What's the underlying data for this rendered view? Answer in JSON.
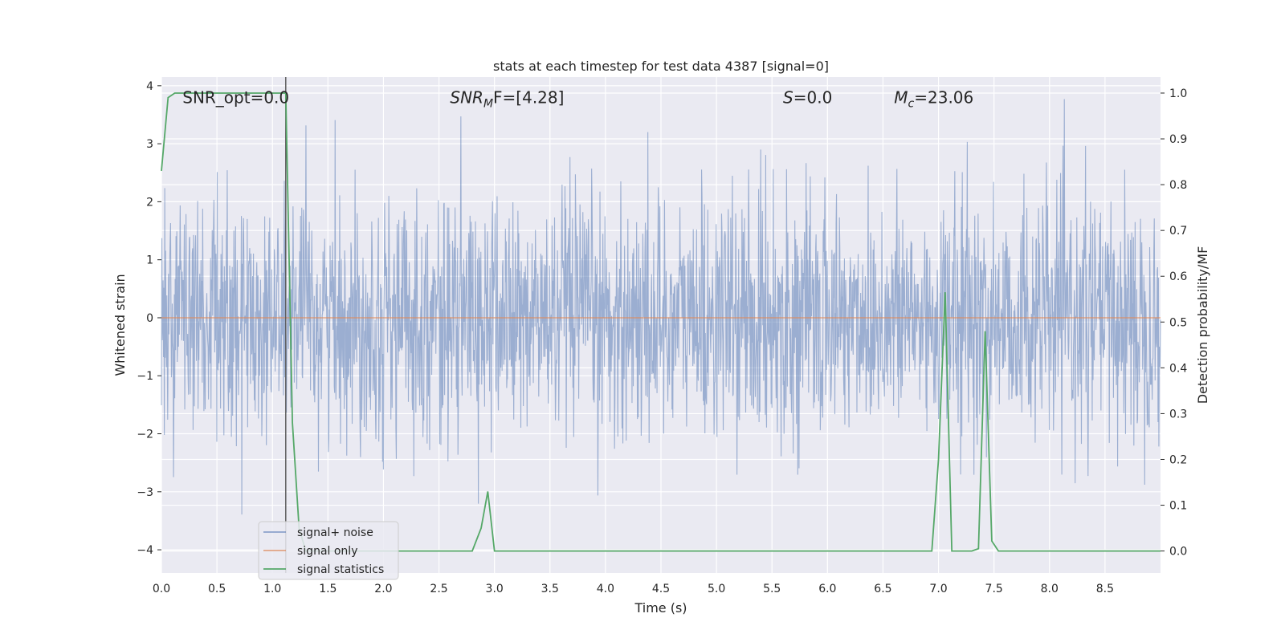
{
  "chart_data": {
    "type": "line",
    "title": "stats at each timestep for test data 4387 [signal=0]",
    "xlabel": "Time (s)",
    "ylabel": "Whitened strain",
    "y2label": "Detection probability/MF",
    "xlim": [
      0.0,
      9.0
    ],
    "ylim": [
      -4.4,
      4.15
    ],
    "y2lim": [
      -0.048,
      1.035
    ],
    "xticks": [
      "0.0",
      "0.5",
      "1.0",
      "1.5",
      "2.0",
      "2.5",
      "3.0",
      "3.5",
      "4.0",
      "4.5",
      "5.0",
      "5.5",
      "6.0",
      "6.5",
      "7.0",
      "7.5",
      "8.0",
      "8.5"
    ],
    "yticks": [
      "4",
      "3",
      "2",
      "1",
      "0",
      "−1",
      "−2",
      "−3",
      "−4"
    ],
    "y2ticks": [
      "1.0",
      "0.9",
      "0.8",
      "0.7",
      "0.6",
      "0.5",
      "0.4",
      "0.3",
      "0.2",
      "0.1",
      "0.0"
    ],
    "annotations": [
      {
        "label": "SNR_opt=0.0",
        "x": 0.19,
        "y": 3.8
      },
      {
        "label_main": "SNR",
        "label_sub": "M",
        "label_rest": "F=[4.28]",
        "x": 2.6,
        "y": 3.8
      },
      {
        "label_main": "S",
        "label_sub": "",
        "label_rest": "=0.0",
        "x": 5.6,
        "y": 3.8
      },
      {
        "label_main": "M",
        "label_sub": "c",
        "label_rest": "=23.06",
        "x": 6.6,
        "y": 3.8
      }
    ],
    "vline_x": 1.12,
    "legend_position": "lower-left",
    "legend": [
      "signal+ noise",
      "signal only",
      "signal statistics"
    ],
    "series": [
      {
        "name": "signal+ noise",
        "color": "#4c72b0",
        "kind": "noise",
        "note_range": [
          -3.7,
          3.77
        ]
      },
      {
        "name": "signal only",
        "color": "#dd8452",
        "x": [
          0.0,
          9.0
        ],
        "values": [
          0.0,
          0.0
        ]
      },
      {
        "name": "signal statistics",
        "color": "#55a868",
        "axis": "right",
        "x": [
          0.0,
          0.06,
          0.12,
          1.12,
          1.18,
          1.24,
          1.3,
          2.5,
          2.8,
          2.88,
          2.94,
          3.0,
          5.0,
          6.94,
          7.0,
          7.06,
          7.12,
          7.3,
          7.36,
          7.42,
          7.48,
          7.54,
          9.0
        ],
        "values": [
          0.83,
          0.99,
          1.0,
          1.0,
          0.28,
          0.05,
          0.0,
          0.0,
          0.0,
          0.05,
          0.13,
          0.0,
          0.0,
          0.0,
          0.2,
          0.565,
          0.0,
          0.0,
          0.005,
          0.48,
          0.022,
          0.0,
          0.0
        ]
      }
    ]
  }
}
